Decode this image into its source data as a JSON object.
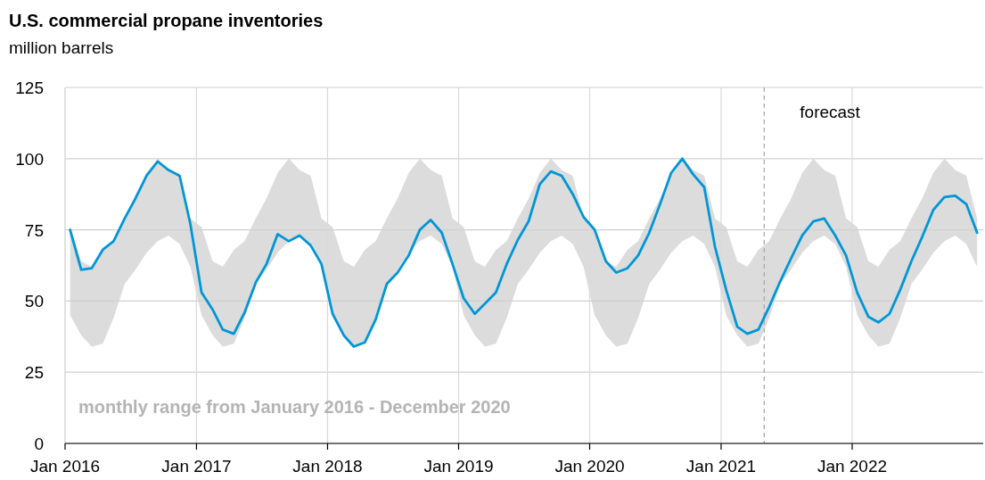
{
  "chart_data": {
    "type": "line",
    "title": "U.S. commercial propane inventories",
    "subtitle": "million barrels",
    "x": [
      "2016-01-15",
      "2016-02-15",
      "2016-03-15",
      "2016-04-15",
      "2016-05-15",
      "2016-06-15",
      "2016-07-15",
      "2016-08-15",
      "2016-09-15",
      "2016-10-15",
      "2016-11-15",
      "2016-12-15",
      "2017-01-15",
      "2017-02-15",
      "2017-03-15",
      "2017-04-15",
      "2017-05-15",
      "2017-06-15",
      "2017-07-15",
      "2017-08-15",
      "2017-09-15",
      "2017-10-15",
      "2017-11-15",
      "2017-12-15",
      "2018-01-15",
      "2018-02-15",
      "2018-03-15",
      "2018-04-15",
      "2018-05-15",
      "2018-06-15",
      "2018-07-15",
      "2018-08-15",
      "2018-09-15",
      "2018-10-15",
      "2018-11-15",
      "2018-12-15",
      "2019-01-15",
      "2019-02-15",
      "2019-03-15",
      "2019-04-15",
      "2019-05-15",
      "2019-06-15",
      "2019-07-15",
      "2019-08-15",
      "2019-09-15",
      "2019-10-15",
      "2019-11-15",
      "2019-12-15",
      "2020-01-15",
      "2020-02-15",
      "2020-03-15",
      "2020-04-15",
      "2020-05-15",
      "2020-06-15",
      "2020-07-15",
      "2020-08-15",
      "2020-09-15",
      "2020-10-15",
      "2020-11-15",
      "2020-12-15",
      "2021-01-15",
      "2021-02-15",
      "2021-03-15",
      "2021-04-15",
      "2021-05-15",
      "2021-06-15",
      "2021-07-15",
      "2021-08-15",
      "2021-09-15",
      "2021-10-15",
      "2021-11-15",
      "2021-12-15",
      "2022-01-15",
      "2022-02-15",
      "2022-03-15",
      "2022-04-15",
      "2022-05-15",
      "2022-06-15",
      "2022-07-15",
      "2022-08-15",
      "2022-09-15",
      "2022-10-15",
      "2022-11-15",
      "2022-12-15"
    ],
    "series": [
      {
        "color": "#0096d7",
        "values": [
          75,
          61,
          61.5,
          68,
          71,
          79,
          86,
          94,
          99,
          96,
          94,
          77,
          53,
          47,
          40,
          38.5,
          46,
          56.5,
          63,
          73.5,
          71,
          73,
          69.5,
          63,
          45.5,
          38,
          34,
          35.5,
          43.5,
          56,
          60,
          66,
          75,
          78.5,
          74,
          63,
          51,
          45.5,
          49,
          53,
          63,
          71.5,
          78,
          91,
          95.5,
          94,
          87.5,
          79.5,
          75,
          64,
          60,
          61.5,
          66,
          74,
          84,
          95,
          100,
          94.5,
          90,
          69,
          54,
          41,
          38.5,
          40,
          48,
          57,
          65,
          73,
          78,
          79,
          73,
          66,
          53,
          44.5,
          42.5,
          45.5,
          54,
          64,
          72.5,
          82,
          86.5,
          87,
          84,
          74
        ],
        "lower": [
          45,
          38,
          34,
          35,
          44,
          56,
          61,
          67,
          71,
          73,
          70,
          62,
          45,
          38,
          34,
          35,
          44,
          56,
          61,
          67,
          71,
          73,
          70,
          62,
          45,
          38,
          34,
          35,
          44,
          56,
          61,
          67,
          71,
          73,
          70,
          62,
          45,
          38,
          34,
          35,
          44,
          56,
          61,
          67,
          71,
          73,
          70,
          62,
          45,
          38,
          34,
          35,
          44,
          56,
          61,
          67,
          71,
          73,
          70,
          62,
          45,
          38,
          34,
          35,
          44,
          56,
          61,
          67,
          71,
          73,
          70,
          62,
          45,
          38,
          34,
          35,
          44,
          56,
          61,
          67,
          71,
          73,
          70,
          62
        ],
        "upper": [
          76,
          64,
          62,
          68,
          71,
          79,
          86,
          95,
          100,
          96,
          94,
          79,
          76,
          64,
          62,
          68,
          71,
          79,
          86,
          95,
          100,
          96,
          94,
          79,
          76,
          64,
          62,
          68,
          71,
          79,
          86,
          95,
          100,
          96,
          94,
          79,
          76,
          64,
          62,
          68,
          71,
          79,
          86,
          95,
          100,
          96,
          94,
          79,
          76,
          64,
          62,
          68,
          71,
          79,
          86,
          95,
          100,
          96,
          94,
          79,
          76,
          64,
          62,
          68,
          71,
          79,
          86,
          95,
          100,
          96,
          94,
          79,
          76,
          64,
          62,
          68,
          71,
          79,
          86,
          95,
          100,
          96,
          94,
          79
        ]
      }
    ],
    "xlim": [
      "2016-01-01",
      "2023-01-01"
    ],
    "xticks": [
      {
        "value": "2016-01-01",
        "label": "Jan 2016"
      },
      {
        "value": "2017-01-01",
        "label": "Jan 2017"
      },
      {
        "value": "2018-01-01",
        "label": "Jan 2018"
      },
      {
        "value": "2019-01-01",
        "label": "Jan 2019"
      },
      {
        "value": "2020-01-01",
        "label": "Jan 2020"
      },
      {
        "value": "2021-01-01",
        "label": "Jan 2021"
      },
      {
        "value": "2022-01-01",
        "label": "Jan 2022"
      }
    ],
    "ylim": [
      0,
      125
    ],
    "yticks": [
      0,
      25,
      50,
      75,
      100,
      125
    ],
    "grid": true,
    "line_style": "solid",
    "ref_lines": [
      {
        "axis": "x",
        "value": "2021-05-01",
        "label": "forecast",
        "color": "#a6a6a6",
        "line_style": "dashed"
      }
    ],
    "annotations": [
      "monthly range from January 2016 - December 2020"
    ]
  }
}
